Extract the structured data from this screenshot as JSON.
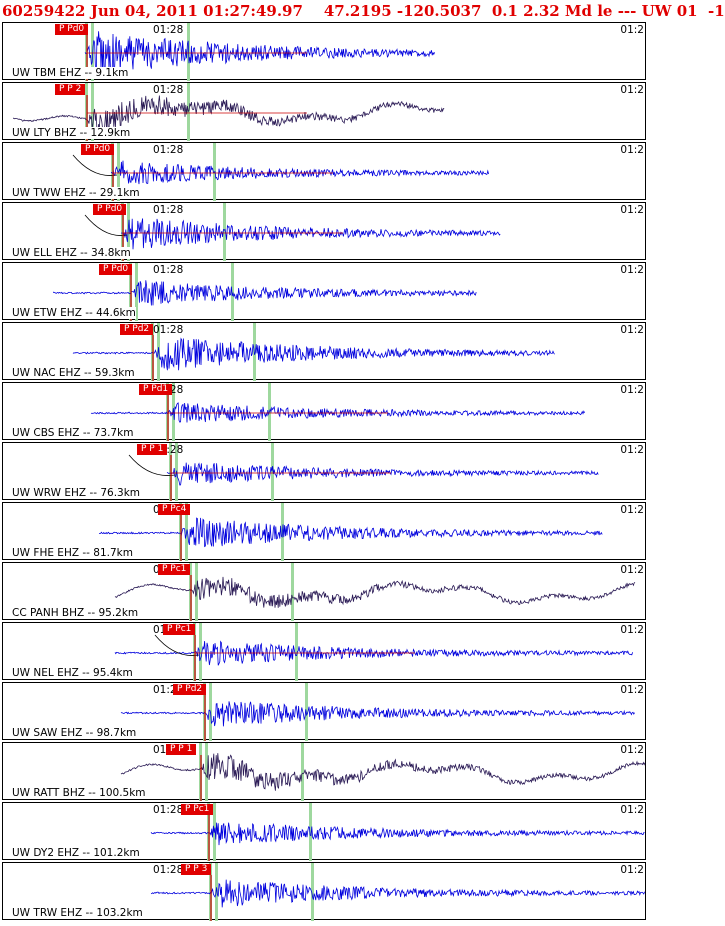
{
  "header": {
    "text": "60259422 Jun 04, 2011 01:27:49.97    47.2195 -120.5037  0.1 2.32 Md le --- UW 01  -1"
  },
  "time_tick_label": "01:28",
  "time_right_label": "01:2",
  "colors": {
    "header": "#e00000",
    "trace_blue": "#0000dd",
    "trace_dark": "#2a1a55",
    "pick_bg": "#e00000",
    "pick_line": "#cc0000",
    "green_marker": "#9ed89e"
  },
  "panels": [
    {
      "label": "UW TBM EHZ -- 9.1km",
      "pick": "P Pd0",
      "pickX": 52,
      "tickX": 150,
      "traceStart": 82,
      "traceEnd": 432,
      "onset": 84,
      "amp": 1.0,
      "color": "trace_blue",
      "blackCurve": false,
      "redLine": true
    },
    {
      "label": "UW LTY BHZ -- 12.9km",
      "pick": "P P 2",
      "pickX": 52,
      "tickX": 150,
      "traceStart": 10,
      "traceEnd": 442,
      "onset": 84,
      "amp": 0.6,
      "color": "trace_dark",
      "blackCurve": false,
      "redLine": true
    },
    {
      "label": "UW TWW EHZ -- 29.1km",
      "pick": "P Pd0",
      "pickX": 78,
      "tickX": 150,
      "traceStart": 108,
      "traceEnd": 486,
      "onset": 110,
      "amp": 0.5,
      "color": "trace_blue",
      "blackCurve": true,
      "redLine": true
    },
    {
      "label": "UW ELL EHZ -- 34.8km",
      "pick": "P Pd0",
      "pickX": 90,
      "tickX": 150,
      "traceStart": 118,
      "traceEnd": 498,
      "onset": 120,
      "amp": 0.7,
      "color": "trace_blue",
      "blackCurve": true,
      "redLine": true
    },
    {
      "label": "UW ETW EHZ -- 44.6km",
      "pick": "P Pd0",
      "pickX": 96,
      "tickX": 150,
      "traceStart": 50,
      "traceEnd": 474,
      "onset": 128,
      "amp": 0.55,
      "color": "trace_blue",
      "blackCurve": false,
      "redLine": false
    },
    {
      "label": "UW NAC EHZ -- 59.3km",
      "pick": "P Pd2",
      "pickX": 117,
      "tickX": 150,
      "traceStart": 70,
      "traceEnd": 552,
      "onset": 150,
      "amp": 0.8,
      "color": "trace_blue",
      "blackCurve": false,
      "redLine": false
    },
    {
      "label": "UW CBS EHZ -- 73.7km",
      "pick": "P Pd1",
      "pickX": 136,
      "tickX": 150,
      "traceStart": 88,
      "traceEnd": 582,
      "onset": 165,
      "amp": 0.45,
      "color": "trace_blue",
      "blackCurve": false,
      "redLine": true
    },
    {
      "label": "UW WRW EHZ -- 76.3km",
      "pick": "P P 1",
      "pickX": 134,
      "tickX": 150,
      "traceStart": 164,
      "traceEnd": 596,
      "onset": 168,
      "amp": 0.5,
      "color": "trace_blue",
      "blackCurve": true,
      "redLine": true
    },
    {
      "label": "UW FHE EHZ -- 81.7km",
      "pick": "P Pc4",
      "pickX": 155,
      "tickX": 150,
      "traceStart": 96,
      "traceEnd": 600,
      "onset": 178,
      "amp": 0.7,
      "color": "trace_blue",
      "blackCurve": false,
      "redLine": false
    },
    {
      "label": "CC PANH BHZ -- 95.2km",
      "pick": "P Pc1",
      "pickX": 155,
      "tickX": 150,
      "traceStart": 112,
      "traceEnd": 632,
      "onset": 188,
      "amp": 0.45,
      "color": "trace_dark",
      "blackCurve": false,
      "redLine": false
    },
    {
      "label": "UW NEL EHZ -- 95.4km",
      "pick": "P Pc1",
      "pickX": 160,
      "tickX": 150,
      "traceStart": 112,
      "traceEnd": 630,
      "onset": 192,
      "amp": 0.55,
      "color": "trace_blue",
      "blackCurve": true,
      "redLine": true
    },
    {
      "label": "UW SAW EHZ -- 98.7km",
      "pick": "P Pd2",
      "pickX": 170,
      "tickX": 150,
      "traceStart": 118,
      "traceEnd": 632,
      "onset": 202,
      "amp": 0.6,
      "color": "trace_blue",
      "blackCurve": false,
      "redLine": false
    },
    {
      "label": "UW RATT BHZ -- 100.5km",
      "pick": "P P 1",
      "pickX": 163,
      "tickX": 150,
      "traceStart": 118,
      "traceEnd": 642,
      "onset": 198,
      "amp": 0.55,
      "color": "trace_dark",
      "blackCurve": false,
      "redLine": false
    },
    {
      "label": "UW DY2 EHZ -- 101.2km",
      "pick": "P Pc1",
      "pickX": 178,
      "tickX": 150,
      "traceStart": 148,
      "traceEnd": 642,
      "onset": 206,
      "amp": 0.5,
      "color": "trace_blue",
      "blackCurve": false,
      "redLine": false
    },
    {
      "label": "UW TRW EHZ -- 103.2km",
      "pick": "P P 3",
      "pickX": 178,
      "tickX": 150,
      "traceStart": 148,
      "traceEnd": 642,
      "onset": 208,
      "amp": 0.6,
      "color": "trace_blue",
      "blackCurve": false,
      "redLine": false
    }
  ]
}
